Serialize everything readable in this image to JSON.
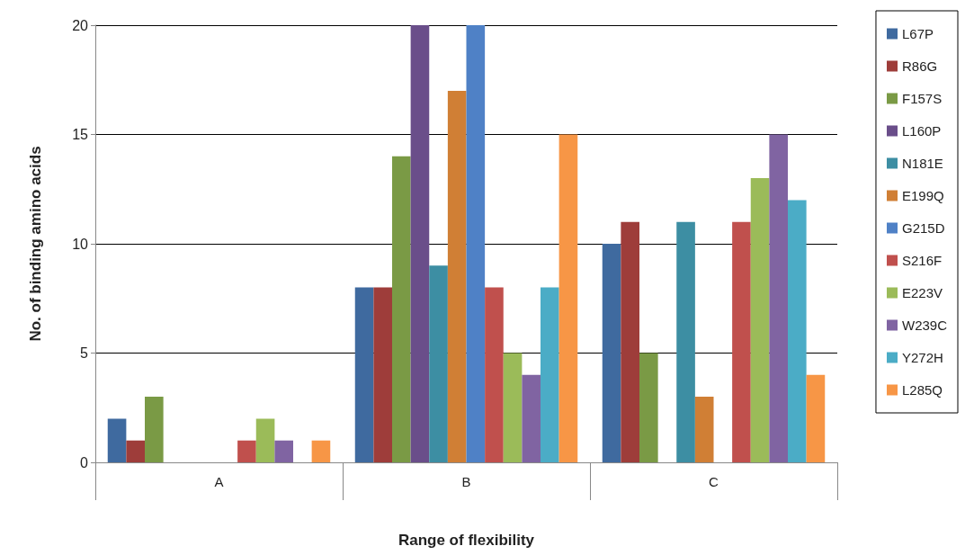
{
  "chart_data": {
    "type": "bar",
    "xlabel": "Range of flexibility",
    "ylabel": "No. of binding amino acids",
    "categories": [
      "A",
      "B",
      "C"
    ],
    "series": [
      {
        "name": "L67P",
        "color": "#3f6a9f",
        "values": [
          2,
          8,
          10
        ]
      },
      {
        "name": "R86G",
        "color": "#9e3d3a",
        "values": [
          1,
          8,
          11
        ]
      },
      {
        "name": "F157S",
        "color": "#7a9a45",
        "values": [
          3,
          14,
          5
        ]
      },
      {
        "name": "L160P",
        "color": "#6a4e8a",
        "values": [
          0,
          20,
          0
        ]
      },
      {
        "name": "N181E",
        "color": "#3d8ea3",
        "values": [
          0,
          9,
          11
        ]
      },
      {
        "name": "E199Q",
        "color": "#d07f35",
        "values": [
          0,
          17,
          3
        ]
      },
      {
        "name": "G215D",
        "color": "#4f81c6",
        "values": [
          0,
          20,
          0
        ]
      },
      {
        "name": "S216F",
        "color": "#c0504d",
        "values": [
          1,
          8,
          11
        ]
      },
      {
        "name": "E223V",
        "color": "#9bbb59",
        "values": [
          2,
          5,
          13
        ]
      },
      {
        "name": "W239C",
        "color": "#8064a2",
        "values": [
          1,
          4,
          15
        ]
      },
      {
        "name": "Y272H",
        "color": "#4bacc6",
        "values": [
          0,
          8,
          12
        ]
      },
      {
        "name": "L285Q",
        "color": "#f79646",
        "values": [
          1,
          15,
          4
        ]
      }
    ],
    "ylim": [
      0,
      20
    ],
    "yticks": [
      0,
      5,
      10,
      15,
      20
    ],
    "grid": "y",
    "legend": "right"
  }
}
